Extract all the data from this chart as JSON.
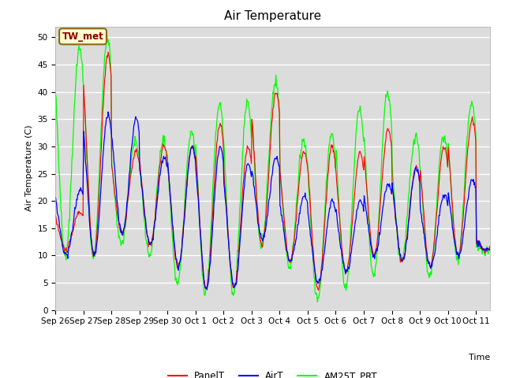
{
  "title": "Air Temperature",
  "ylabel": "Air Temperature (C)",
  "xlabel": "Time",
  "ylim": [
    0,
    52
  ],
  "n_days": 15.5,
  "annotation_text": "TW_met",
  "annotation_color": "#8B0000",
  "annotation_bg": "#FFFFCC",
  "fig_bg": "#ffffff",
  "plot_bg": "#DCDCDC",
  "grid_color": "white",
  "legend": [
    "PanelT",
    "AirT",
    "AM25T_PRT"
  ],
  "line_colors": [
    "red",
    "blue",
    "lime"
  ],
  "tick_labels": [
    "Sep 26",
    "Sep 27",
    "Sep 28",
    "Sep 29",
    "Sep 30",
    "Oct 1",
    "Oct 2",
    "Oct 3",
    "Oct 4",
    "Oct 5",
    "Oct 6",
    "Oct 7",
    "Oct 8",
    "Oct 9",
    "Oct 10",
    "Oct 11"
  ],
  "title_fontsize": 11,
  "label_fontsize": 8,
  "tick_fontsize": 7.5,
  "legend_fontsize": 8.5
}
